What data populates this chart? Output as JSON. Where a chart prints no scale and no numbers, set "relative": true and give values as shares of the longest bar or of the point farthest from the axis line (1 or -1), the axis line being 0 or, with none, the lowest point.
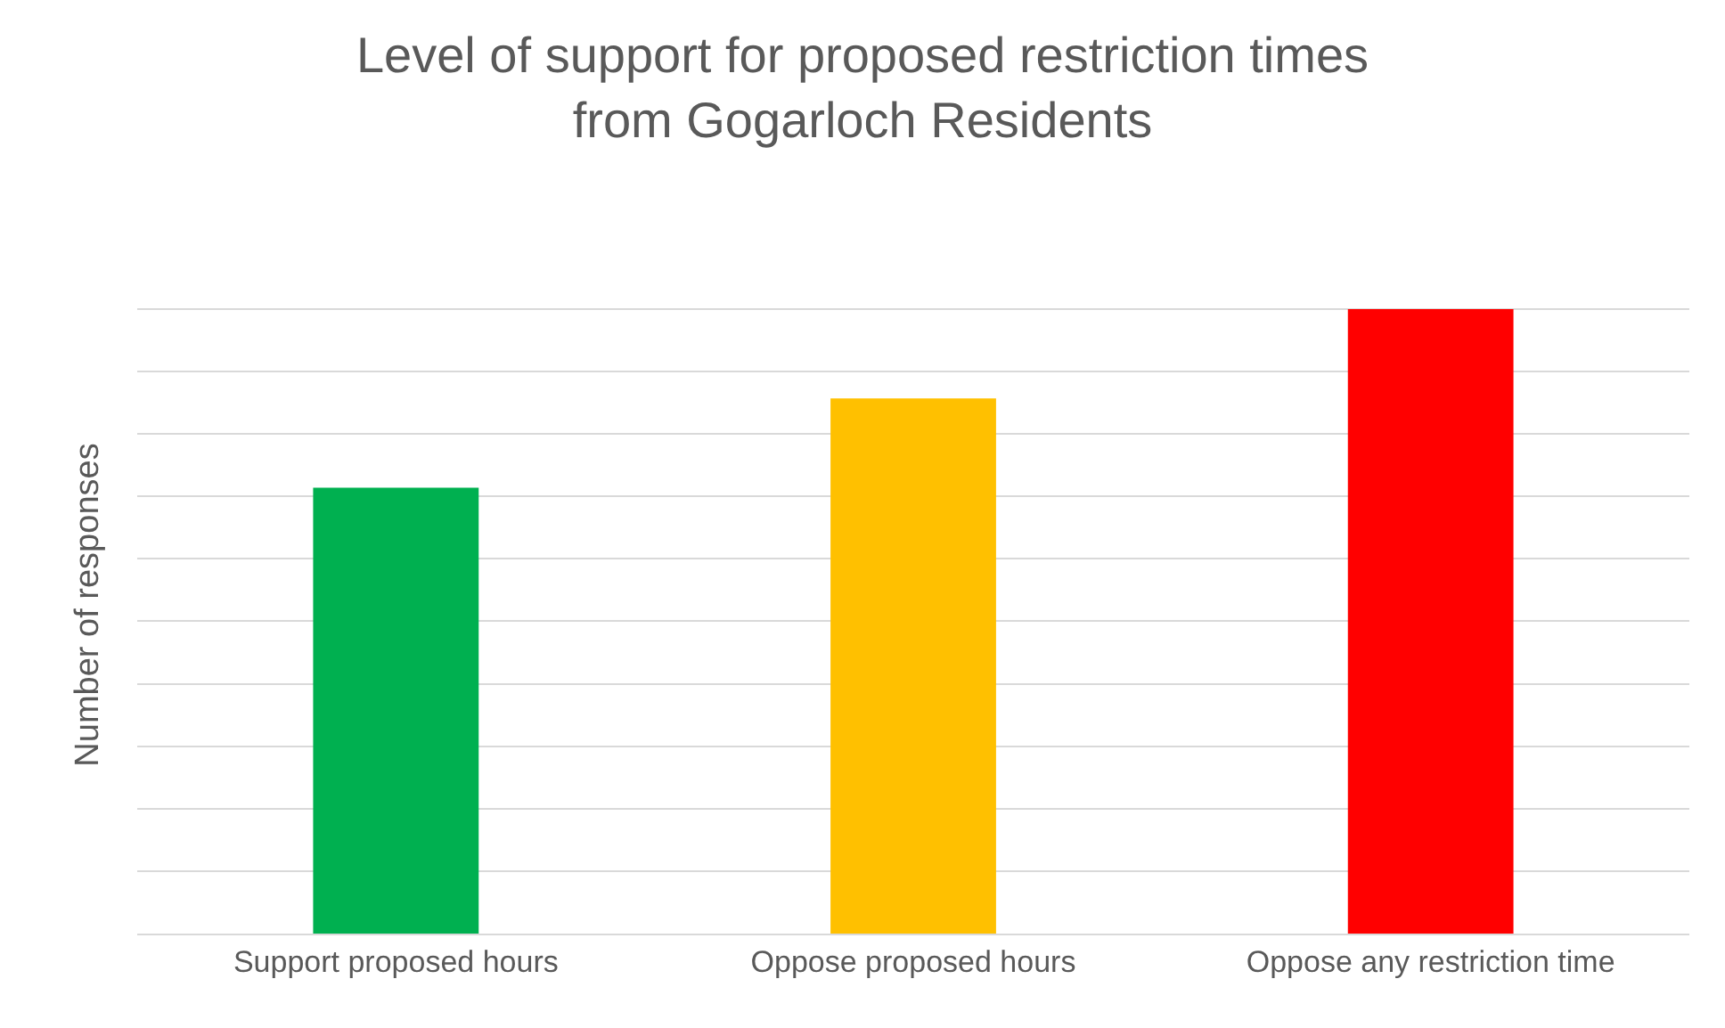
{
  "chart_data": {
    "type": "bar",
    "title": "Level of support for proposed restriction times\nfrom Gogarloch Residents",
    "ylabel": "Number of responses",
    "categories": [
      "Support proposed hours",
      "Oppose proposed hours",
      "Oppose any restriction time"
    ],
    "values": [
      0.714,
      0.857,
      1
    ],
    "colors": [
      "#00b050",
      "#ffc000",
      "#ff0000"
    ],
    "relative": true,
    "grid": "y"
  }
}
